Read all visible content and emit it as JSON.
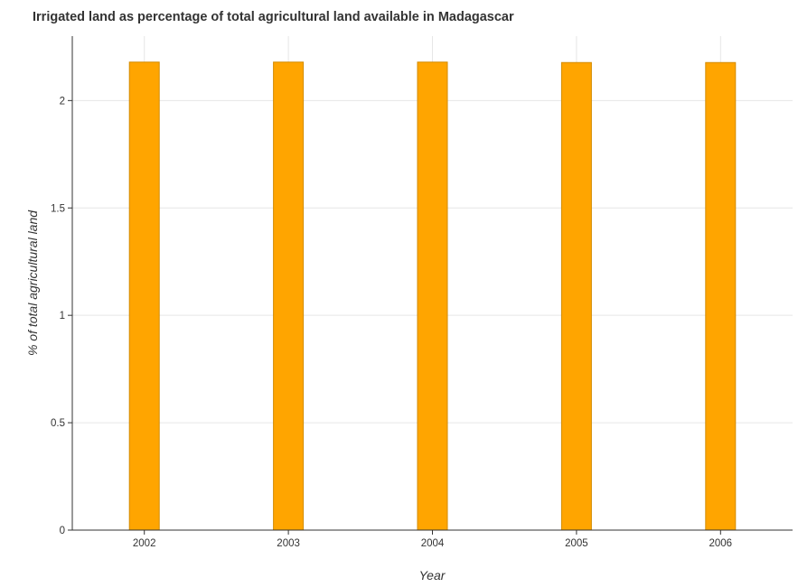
{
  "chart_data": {
    "type": "bar",
    "title": "Irrigated land as percentage of total agricultural land available in Madagascar",
    "xlabel": "Year",
    "ylabel": "% of total agricultural land",
    "categories": [
      "2002",
      "2003",
      "2004",
      "2005",
      "2006"
    ],
    "values": [
      2.179,
      2.179,
      2.179,
      2.177,
      2.177
    ],
    "ylim": [
      0,
      2.3
    ],
    "yticks": [
      0,
      0.5,
      1,
      1.5,
      2
    ],
    "ytick_labels": [
      "0",
      "0.5",
      "1",
      "1.5",
      "2"
    ],
    "grid": true,
    "bar_color": "#ffa500",
    "bar_edge_color": "#d38b00",
    "grid_color": "#e6e6e6"
  }
}
